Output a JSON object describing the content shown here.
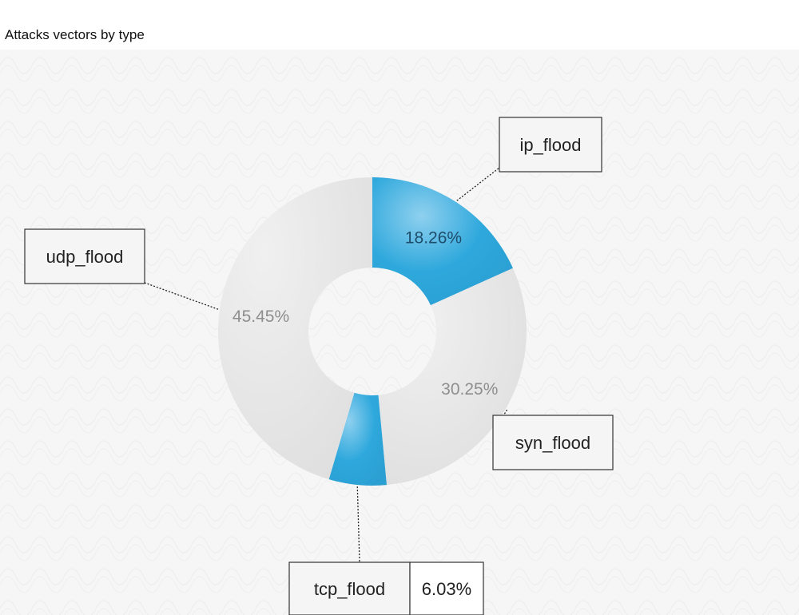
{
  "chart_data": {
    "type": "pie",
    "title": "Attacks vectors by type",
    "categories": [
      "ip_flood",
      "syn_flood",
      "tcp_flood",
      "udp_flood"
    ],
    "values": [
      18.26,
      30.25,
      6.03,
      45.45
    ],
    "value_labels": [
      "18.26%",
      "30.25%",
      "6.03%",
      "45.45%"
    ],
    "highlighted": [
      true,
      false,
      true,
      false
    ],
    "legend": "callouts",
    "grid": false
  },
  "colors": {
    "highlight": "#2ea8dc",
    "highlight_light": "#8fd0ef",
    "base": "#e2e2e2",
    "base_light": "#f0f0f0",
    "highlight_label": "#1d4d6b",
    "base_label": "#8e8e8e"
  }
}
